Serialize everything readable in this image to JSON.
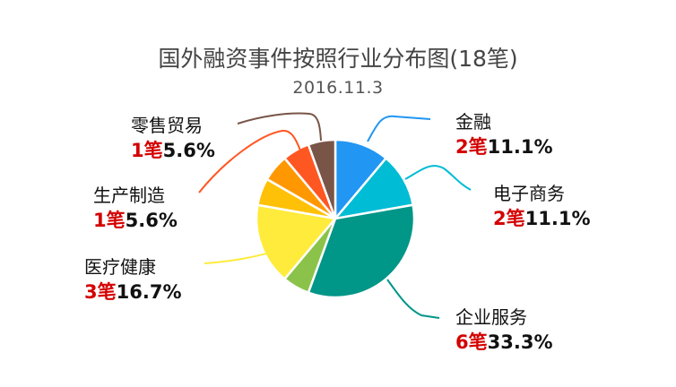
{
  "title": "国外融资事件按照行业分布图(18笔)",
  "subtitle": "2016.11.3",
  "unit": "笔",
  "chart_data": {
    "type": "pie",
    "title": "国外融资事件按照行业分布图(18笔)",
    "subtitle": "2016.11.3",
    "total": 18,
    "slices": [
      {
        "label": "金融",
        "count": 2,
        "percent": "11.1%",
        "color": "#2196f3"
      },
      {
        "label": "电子商务",
        "count": 2,
        "percent": "11.1%",
        "color": "#00bcd4"
      },
      {
        "label": "企业服务",
        "count": 6,
        "percent": "33.3%",
        "color": "#009688"
      },
      {
        "label": "",
        "count": 1,
        "percent": "5.6%",
        "color": "#8bc34a"
      },
      {
        "label": "医疗健康",
        "count": 3,
        "percent": "16.7%",
        "color": "#ffeb3b"
      },
      {
        "label": "",
        "count": 1,
        "percent": "5.6%",
        "color": "#ffc107"
      },
      {
        "label": "生产制造",
        "count": 1,
        "percent": "5.6%",
        "color": "#ff9800"
      },
      {
        "label": "零售贸易",
        "count": 1,
        "percent": "5.6%",
        "color": "#ff5722"
      },
      {
        "label": "",
        "count": 1,
        "percent": "5.6%",
        "color": "#795548"
      }
    ]
  },
  "labels": {
    "finance": {
      "name": "金融",
      "count": "2笔",
      "pct": "11.1%"
    },
    "ecommerce": {
      "name": "电子商务",
      "count": "2笔",
      "pct": "11.1%"
    },
    "enterprise": {
      "name": "企业服务",
      "count": "6笔",
      "pct": "33.3%"
    },
    "health": {
      "name": "医疗健康",
      "count": "3笔",
      "pct": "16.7%"
    },
    "manufacturing": {
      "name": "生产制造",
      "count": "1笔",
      "pct": "5.6%"
    },
    "retail": {
      "name": "零售贸易",
      "count": "1笔",
      "pct": "5.6%"
    }
  }
}
